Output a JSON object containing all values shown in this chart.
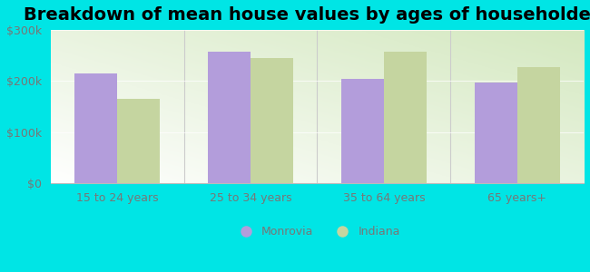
{
  "title": "Breakdown of mean house values by ages of householders",
  "categories": [
    "15 to 24 years",
    "25 to 34 years",
    "35 to 64 years",
    "65 years+"
  ],
  "monrovia_values": [
    215000,
    258000,
    205000,
    198000
  ],
  "indiana_values": [
    165000,
    245000,
    258000,
    228000
  ],
  "monrovia_color": "#b39ddb",
  "indiana_color": "#c5d5a0",
  "background_color": "#00e5e5",
  "ylim": [
    0,
    300000
  ],
  "yticks": [
    0,
    100000,
    200000,
    300000
  ],
  "ytick_labels": [
    "$0",
    "$100k",
    "$200k",
    "$300k"
  ],
  "bar_width": 0.32,
  "legend_monrovia": "Monrovia",
  "legend_indiana": "Indiana",
  "title_fontsize": 14,
  "tick_fontsize": 9,
  "legend_fontsize": 9,
  "tick_color": "#777777",
  "separator_color": "#cccccc"
}
